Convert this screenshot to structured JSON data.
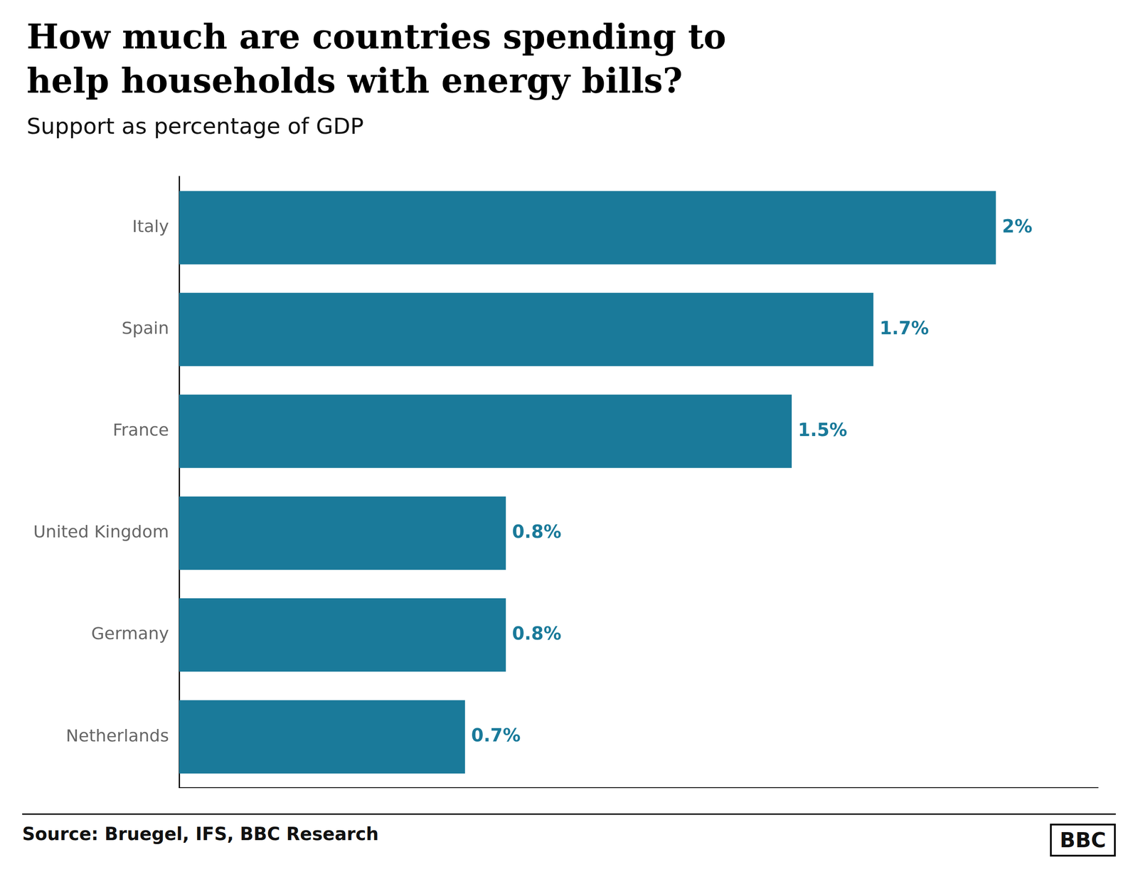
{
  "chart_data": {
    "type": "bar",
    "orientation": "horizontal",
    "title": [
      "How much are countries spending to",
      "help households with energy bills?"
    ],
    "subtitle": "Support as percentage of GDP",
    "categories": [
      "Italy",
      "Spain",
      "France",
      "United Kingdom",
      "Germany",
      "Netherlands"
    ],
    "values": [
      2.0,
      1.7,
      1.5,
      0.8,
      0.8,
      0.7
    ],
    "value_labels": [
      "2%",
      "1.7%",
      "1.5%",
      "0.8%",
      "0.8%",
      "0.7%"
    ],
    "data_labels": true,
    "color": "#1a7a9a",
    "xlim": [
      0,
      2.25
    ],
    "tick_labels": "y",
    "grid": false,
    "annotations": [
      "Source: Bruegel, IFS, BBC Research",
      "BBC"
    ]
  }
}
